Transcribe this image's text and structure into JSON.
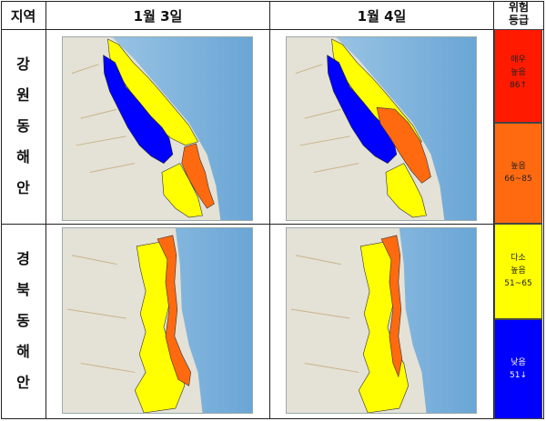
{
  "header": {
    "region_label": "지역",
    "day1_label": "1월 3일",
    "day2_label": "1월 4일",
    "risk_label_line1": "위험",
    "risk_label_line2": "등급"
  },
  "regions": [
    {
      "name_chars": [
        "강",
        "원",
        "동",
        "해",
        "안"
      ]
    },
    {
      "name_chars": [
        "경",
        "북",
        "동",
        "해",
        "안"
      ]
    }
  ],
  "legend": [
    {
      "line1": "매우",
      "line2": "높음",
      "line3": "86↑",
      "color": "#ff1a00",
      "text_color": "#222222"
    },
    {
      "line1": "높음",
      "line2": "66~85",
      "line3": "",
      "color": "#ff6a10",
      "text_color": "#222222"
    },
    {
      "line1": "다소",
      "line2": "높음",
      "line3": "51~65",
      "color": "#ffff00",
      "text_color": "#222222"
    },
    {
      "line1": "낮음",
      "line2": "51↓",
      "line3": "",
      "color": "#0000ff",
      "text_color": "#ffffff"
    }
  ],
  "colors": {
    "very_high": "#ff1a00",
    "high": "#ff6a10",
    "moderate": "#ffff00",
    "low": "#0000ff",
    "sea": "#7fb4dd",
    "land": "#e6e3d9"
  }
}
